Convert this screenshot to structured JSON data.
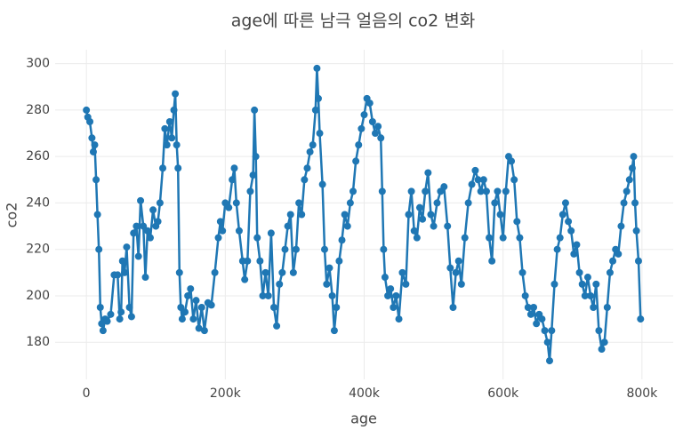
{
  "chart_data": {
    "type": "line",
    "title": "age에 따른 남극 얼음의 co2 변화",
    "x_label": "age",
    "y_label": "co2",
    "color": "#1f77b4",
    "grid": true,
    "markers": true,
    "xlim": [
      -45000,
      845000
    ],
    "xticks": [
      0,
      {
        "value": 200000,
        "label": "200k"
      },
      {
        "value": 400000,
        "label": "400k"
      },
      {
        "value": 600000,
        "label": "600k"
      },
      {
        "value": 800000,
        "label": "800k"
      }
    ],
    "ylim": [
      164,
      306
    ],
    "yticks": [
      180,
      200,
      220,
      240,
      260,
      280,
      300
    ],
    "x": [
      0,
      2000,
      5000,
      8000,
      10000,
      12000,
      14000,
      16000,
      18000,
      20000,
      22000,
      24000,
      27000,
      30000,
      35000,
      40000,
      45000,
      48000,
      50000,
      52000,
      55000,
      58000,
      62000,
      65000,
      68000,
      72000,
      75000,
      78000,
      82000,
      85000,
      88000,
      92000,
      96000,
      100000,
      103000,
      106000,
      110000,
      113000,
      116000,
      120000,
      123000,
      126000,
      128000,
      130000,
      132000,
      134000,
      136000,
      138000,
      142000,
      146000,
      150000,
      154000,
      158000,
      162000,
      166000,
      170000,
      175000,
      180000,
      185000,
      190000,
      193000,
      196000,
      200000,
      205000,
      210000,
      213000,
      216000,
      220000,
      225000,
      228000,
      232000,
      236000,
      240000,
      242000,
      244000,
      246000,
      250000,
      254000,
      258000,
      262000,
      266000,
      270000,
      274000,
      278000,
      282000,
      286000,
      290000,
      294000,
      298000,
      302000,
      306000,
      310000,
      314000,
      318000,
      322000,
      326000,
      330000,
      332000,
      334000,
      336000,
      340000,
      343000,
      346000,
      350000,
      354000,
      357000,
      360000,
      364000,
      368000,
      372000,
      376000,
      380000,
      384000,
      388000,
      392000,
      396000,
      400000,
      404000,
      408000,
      412000,
      416000,
      420000,
      424000,
      426000,
      428000,
      430000,
      434000,
      438000,
      442000,
      446000,
      450000,
      455000,
      460000,
      464000,
      468000,
      472000,
      476000,
      480000,
      484000,
      488000,
      492000,
      496000,
      500000,
      505000,
      510000,
      515000,
      520000,
      524000,
      528000,
      532000,
      536000,
      540000,
      545000,
      550000,
      555000,
      560000,
      564000,
      568000,
      572000,
      576000,
      580000,
      584000,
      588000,
      592000,
      596000,
      600000,
      604000,
      608000,
      612000,
      616000,
      620000,
      624000,
      628000,
      632000,
      636000,
      640000,
      644000,
      648000,
      652000,
      656000,
      660000,
      664000,
      667000,
      670000,
      674000,
      678000,
      682000,
      686000,
      690000,
      694000,
      698000,
      702000,
      706000,
      710000,
      714000,
      718000,
      722000,
      726000,
      730000,
      734000,
      738000,
      742000,
      746000,
      750000,
      754000,
      758000,
      762000,
      766000,
      770000,
      774000,
      778000,
      782000,
      786000,
      788000,
      790000,
      792000,
      795000,
      798000
    ],
    "values": [
      280,
      277,
      275,
      268,
      262,
      265,
      250,
      235,
      220,
      195,
      188,
      185,
      190,
      189,
      192,
      209,
      209,
      190,
      193,
      215,
      210,
      221,
      195,
      191,
      227,
      230,
      217,
      241,
      230,
      208,
      228,
      225,
      237,
      230,
      232,
      240,
      255,
      272,
      265,
      275,
      268,
      280,
      287,
      265,
      255,
      210,
      195,
      190,
      193,
      200,
      203,
      190,
      198,
      186,
      195,
      185,
      197,
      196,
      210,
      225,
      232,
      228,
      240,
      238,
      250,
      255,
      240,
      228,
      215,
      207,
      215,
      245,
      252,
      280,
      260,
      225,
      215,
      200,
      210,
      200,
      227,
      195,
      187,
      205,
      210,
      220,
      230,
      235,
      210,
      220,
      240,
      235,
      250,
      255,
      262,
      265,
      280,
      298,
      285,
      270,
      248,
      220,
      205,
      212,
      200,
      185,
      195,
      215,
      224,
      235,
      230,
      240,
      245,
      258,
      265,
      272,
      278,
      285,
      283,
      275,
      270,
      273,
      268,
      245,
      220,
      208,
      200,
      203,
      195,
      200,
      190,
      210,
      205,
      235,
      245,
      228,
      225,
      238,
      233,
      245,
      253,
      235,
      230,
      240,
      245,
      247,
      230,
      212,
      195,
      210,
      215,
      205,
      225,
      240,
      248,
      254,
      250,
      245,
      250,
      245,
      225,
      215,
      240,
      245,
      235,
      225,
      245,
      260,
      258,
      250,
      232,
      225,
      210,
      200,
      195,
      192,
      195,
      188,
      192,
      190,
      185,
      180,
      172,
      185,
      205,
      220,
      225,
      235,
      240,
      232,
      228,
      218,
      222,
      210,
      205,
      200,
      208,
      200,
      195,
      205,
      185,
      177,
      180,
      195,
      210,
      215,
      220,
      218,
      230,
      240,
      245,
      250,
      255,
      260,
      240,
      228,
      215,
      190
    ]
  }
}
